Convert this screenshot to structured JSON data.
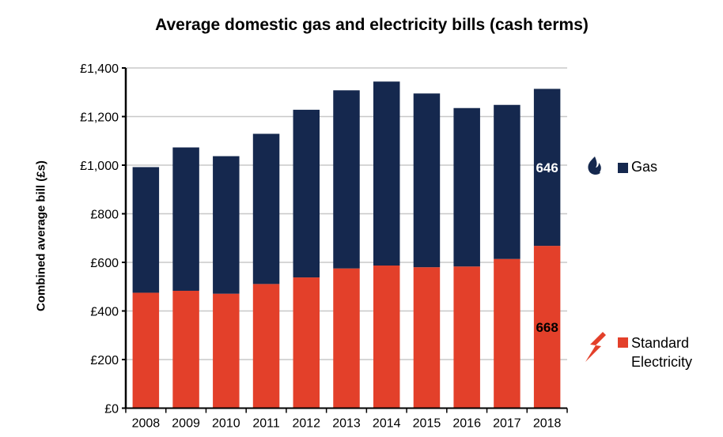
{
  "chart_data": {
    "type": "bar",
    "stacked": true,
    "title": "Average domestic gas and electricity bills (cash terms)",
    "xlabel": "",
    "ylabel": "Combined average bill (£s)",
    "ylim": [
      0,
      1400
    ],
    "yticks": [
      "£0",
      "£200",
      "£400",
      "£600",
      "£800",
      "£1,000",
      "£1,200",
      "£1,400"
    ],
    "grid": true,
    "legend_position": "right",
    "categories": [
      "2008",
      "2009",
      "2010",
      "2011",
      "2012",
      "2013",
      "2014",
      "2015",
      "2016",
      "2017",
      "2018"
    ],
    "series": [
      {
        "name": "Standard Electricity",
        "color": "#e3402a",
        "icon": "lightning-icon",
        "values": [
          475,
          483,
          471,
          511,
          538,
          575,
          587,
          580,
          583,
          614,
          668
        ]
      },
      {
        "name": "Gas",
        "color": "#15284e",
        "icon": "flame-icon",
        "values": [
          517,
          590,
          566,
          618,
          690,
          733,
          757,
          715,
          652,
          634,
          646
        ]
      }
    ],
    "data_labels": [
      {
        "series": "Gas",
        "category": "2018",
        "text": "646"
      },
      {
        "series": "Standard Electricity",
        "category": "2018",
        "text": "668"
      }
    ]
  }
}
